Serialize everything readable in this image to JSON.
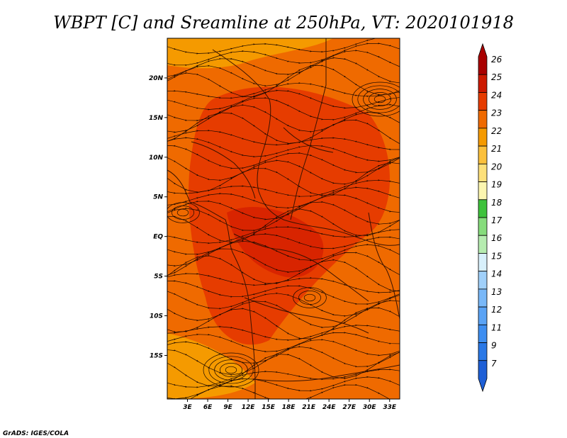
{
  "chart_data": {
    "type": "heatmap",
    "title": "WBPT [C] and Sreamline at 250hPa, VT: 2020101918",
    "x_ticks": [
      "3E",
      "6E",
      "9E",
      "12E",
      "15E",
      "18E",
      "21E",
      "24E",
      "27E",
      "30E",
      "33E"
    ],
    "y_ticks": [
      "20N",
      "15N",
      "10N",
      "5N",
      "EQ",
      "5S",
      "10S",
      "15S"
    ],
    "xlim": [
      0,
      34.5
    ],
    "ylim": [
      -20.5,
      25
    ],
    "colorbar": {
      "labels": [
        "7",
        "9",
        "11",
        "12",
        "13",
        "14",
        "15",
        "16",
        "17",
        "18",
        "19",
        "20",
        "21",
        "22",
        "23",
        "24",
        "25",
        "26"
      ],
      "colors": [
        "#1e5fd6",
        "#2a78e6",
        "#3e8ef0",
        "#5aa3f5",
        "#79b8f8",
        "#a0d0fa",
        "#d8f0fb",
        "#b6ecb0",
        "#86dc7c",
        "#3ec23c",
        "#fcf6b0",
        "#fde07a",
        "#fbc03c",
        "#f59a00",
        "#ef6a00",
        "#e63c00",
        "#cc1a00",
        "#a80000"
      ]
    },
    "credit": "GrADS: IGES/COLA",
    "field_colors": {
      "dominant": "#e63c00",
      "secondary": "#ef6a00",
      "warm_core": "#d82400",
      "boundary": "#3a1200"
    }
  }
}
